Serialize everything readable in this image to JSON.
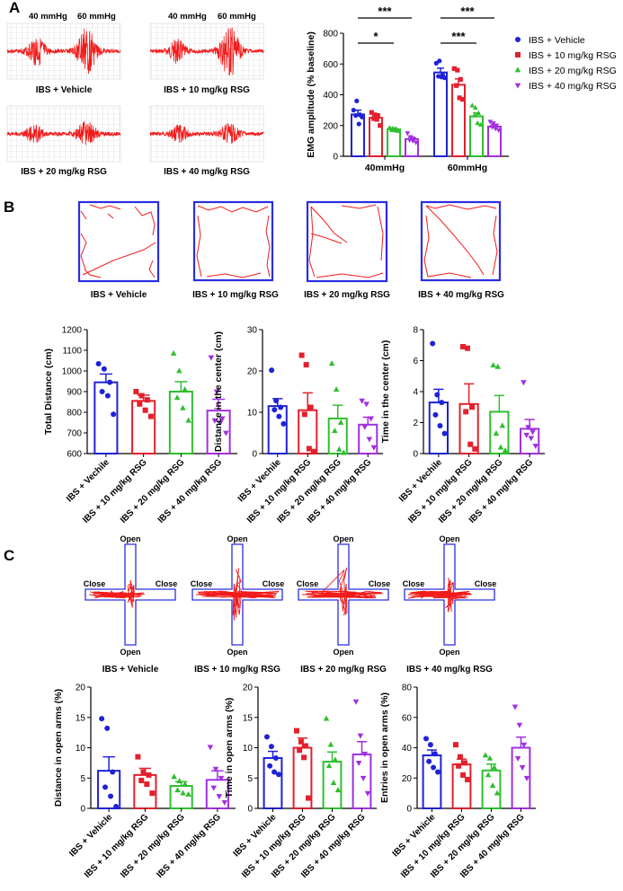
{
  "colors": {
    "vehicle": "#1f22d6",
    "rsg10": "#e3202c",
    "rsg20": "#2fbf2f",
    "rsg40": "#a12fe0",
    "trace": "#f21b1b",
    "axis": "#000000"
  },
  "panels": {
    "a": "A",
    "b": "B",
    "c": "C"
  },
  "panel_a": {
    "trace_labels": [
      "IBS + Vehicle",
      "IBS + 10 mg/kg RSG",
      "IBS + 20 mg/kg RSG",
      "IBS + 40 mg/kg RSG"
    ],
    "pressure_labels": [
      "40 mmHg",
      "60 mmHg",
      "40 mmHg",
      "60 mmHg"
    ]
  },
  "panel_b": {
    "track_labels": [
      "IBS + Vehicle",
      "IBS + 10 mg/kg RSG",
      "IBS + 20 mg/kg RSG",
      "IBS + 40 mg/kg RSG"
    ]
  },
  "panel_c": {
    "maze_labels": [
      "IBS + Vehicle",
      "IBS + 10 mg/kg RSG",
      "IBS + 20 mg/kg RSG",
      "IBS + 40 mg/kg RSG"
    ],
    "arm_labels": {
      "open": "Open",
      "close": "Close"
    }
  },
  "chart_data": [
    {
      "id": "emg",
      "type": "bar",
      "title": "",
      "categories": [
        "40mmHg",
        "60mmHg"
      ],
      "ylabel": "EMG amplitude (% baseline)",
      "ylim": [
        0,
        800
      ],
      "yticks": [
        0,
        200,
        400,
        600,
        800
      ],
      "series": [
        {
          "name": "IBS + Vehicle",
          "values": [
            272,
            545
          ],
          "sem": [
            28,
            28
          ],
          "marker": "circle",
          "points": [
            [
              300,
              360,
              270,
              265,
              210,
              255
            ],
            [
              605,
              620,
              530,
              520,
              515,
              510
            ]
          ]
        },
        {
          "name": "IBS + 10 mg/kg RSG",
          "values": [
            250,
            465
          ],
          "sem": [
            20,
            38
          ],
          "marker": "square",
          "points": [
            [
              285,
              270,
              265,
              245,
              240,
              200
            ],
            [
              570,
              560,
              500,
              460,
              380,
              370
            ]
          ]
        },
        {
          "name": "IBS + 20 mg/kg RSG",
          "values": [
            175,
            260
          ],
          "sem": [
            10,
            22
          ],
          "marker": "triangle",
          "points": [
            [
              185,
              180,
              175,
              170,
              168,
              165
            ],
            [
              330,
              315,
              280,
              265,
              215,
              205
            ]
          ]
        },
        {
          "name": "IBS + 40 mg/kg RSG",
          "values": [
            112,
            193
          ],
          "sem": [
            12,
            14
          ],
          "marker": "triangle-down",
          "points": [
            [
              150,
              125,
              110,
              105,
              100,
              90
            ],
            [
              225,
              215,
              200,
              190,
              180,
              170
            ]
          ]
        }
      ],
      "significance": [
        "***",
        "*",
        "***",
        "***"
      ]
    },
    {
      "id": "total_distance",
      "type": "bar",
      "categories": [
        "IBS + Vechile",
        "IBS + 10 mg/kg RSG",
        "IBS + 20 mg/kg RSG",
        "IBS + 40 mg/kg RSG"
      ],
      "ylabel": "Total Distance (cm)",
      "ylim": [
        600,
        1200
      ],
      "yticks": [
        600,
        700,
        800,
        900,
        1000,
        1100,
        1200
      ],
      "values": [
        945,
        855,
        900,
        808
      ],
      "sem": [
        40,
        28,
        48,
        55
      ],
      "points": [
        [
          1035,
          1010,
          945,
          900,
          880,
          790
        ],
        [
          900,
          880,
          860,
          840,
          810,
          780
        ],
        [
          1085,
          1000,
          910,
          870,
          820,
          760
        ],
        [
          1065,
          900,
          770,
          760,
          750,
          700
        ]
      ]
    },
    {
      "id": "distance_center",
      "type": "bar",
      "categories": [
        "IBS + Vechile",
        "IBS + 10 mg/kg RSG",
        "IBS + 20 mg/kg RSG",
        "IBS + 40 mg/kg RSG"
      ],
      "ylabel": "Distance in the center (cm)",
      "ylim": [
        0,
        30
      ],
      "yticks": [
        0,
        10,
        20,
        30
      ],
      "values": [
        11.5,
        10.5,
        8.5,
        7.0
      ],
      "sem": [
        1.8,
        4.2,
        3.2,
        1.8
      ],
      "points": [
        [
          20.2,
          12.8,
          11.2,
          10.6,
          9.0,
          7.2
        ],
        [
          23.8,
          21.5,
          11.2,
          9.5,
          1.2,
          0.5
        ],
        [
          21.8,
          15.5,
          7.5,
          5.5,
          1.0,
          0.2
        ],
        [
          12.8,
          12.0,
          8.5,
          6.5,
          3.5,
          1.5
        ]
      ]
    },
    {
      "id": "time_center",
      "type": "bar",
      "categories": [
        "IBS + Vechile",
        "IBS + 10 mg/kg RSG",
        "IBS + 20 mg/kg RSG",
        "IBS + 40 mg/kg RSG"
      ],
      "ylabel": "Time in the center (cm)",
      "ylim": [
        0,
        8
      ],
      "yticks": [
        0,
        2,
        4,
        6,
        8
      ],
      "values": [
        3.3,
        3.2,
        2.7,
        1.6
      ],
      "sem": [
        0.85,
        1.3,
        1.05,
        0.6
      ],
      "points": [
        [
          7.1,
          3.8,
          3.3,
          2.5,
          1.8,
          1.3
        ],
        [
          6.9,
          6.8,
          3.0,
          2.7,
          0.6,
          0.3
        ],
        [
          5.7,
          5.6,
          1.8,
          1.3,
          0.4,
          0.2
        ],
        [
          4.6,
          1.7,
          1.4,
          1.2,
          1.0,
          0.5
        ]
      ]
    },
    {
      "id": "distance_open",
      "type": "bar",
      "categories": [
        "IBS + Vehicle",
        "IBS + 10 mg/kg RSG",
        "IBS + 20 mg/kg RSG",
        "IBS + 40 mg/kg RSG"
      ],
      "ylabel": "Distance in open arms (%)",
      "ylim": [
        0,
        20
      ],
      "yticks": [
        0,
        5,
        10,
        15,
        20
      ],
      "values": [
        6.2,
        5.5,
        3.7,
        4.7
      ],
      "sem": [
        2.3,
        1.1,
        0.7,
        1.5
      ],
      "points": [
        [
          14.8,
          13.2,
          6.0,
          3.5,
          2.0,
          0.3
        ],
        [
          8.5,
          6.0,
          5.5,
          4.6,
          4.0,
          2.5
        ],
        [
          5.2,
          4.5,
          4.0,
          3.0,
          2.5,
          2.3
        ],
        [
          10.1,
          6.5,
          5.0,
          3.4,
          2.0,
          1.0
        ]
      ]
    },
    {
      "id": "time_open",
      "type": "bar",
      "categories": [
        "IBS + Vehicle",
        "IBS + 10 mg/kg RSG",
        "IBS + 20 mg/kg RSG",
        "IBS + 40 mg/kg RSG"
      ],
      "ylabel": "Time in open arms (%)",
      "ylim": [
        0,
        20
      ],
      "yticks": [
        0,
        5,
        10,
        15,
        20
      ],
      "values": [
        8.3,
        10.0,
        7.7,
        8.9
      ],
      "sem": [
        1.1,
        1.6,
        1.6,
        2.1
      ],
      "points": [
        [
          11.8,
          10.2,
          8.3,
          7.0,
          6.0,
          5.6
        ],
        [
          12.8,
          11.0,
          10.3,
          9.6,
          8.4,
          1.7
        ],
        [
          14.8,
          10.5,
          8.0,
          7.0,
          4.2,
          3.0
        ],
        [
          17.6,
          12.0,
          9.0,
          7.5,
          5.0,
          2.5
        ]
      ]
    },
    {
      "id": "entries_open",
      "type": "bar",
      "categories": [
        "IBS + Vehicle",
        "IBS + 10 mg/kg RSG",
        "IBS + 20 mg/kg RSG",
        "IBS + 40 mg/kg RSG"
      ],
      "ylabel": "Entries in open arms (%)",
      "ylim": [
        0,
        80
      ],
      "yticks": [
        0,
        20,
        40,
        60,
        80
      ],
      "values": [
        35,
        29,
        25,
        40
      ],
      "sem": [
        3.5,
        3.5,
        4.2,
        7.0
      ],
      "points": [
        [
          46,
          42,
          36,
          31,
          27,
          24
        ],
        [
          42,
          34,
          30,
          28,
          22,
          19
        ],
        [
          35,
          33,
          27,
          22,
          15,
          10
        ],
        [
          67,
          55,
          42,
          33,
          27,
          20
        ]
      ]
    }
  ]
}
